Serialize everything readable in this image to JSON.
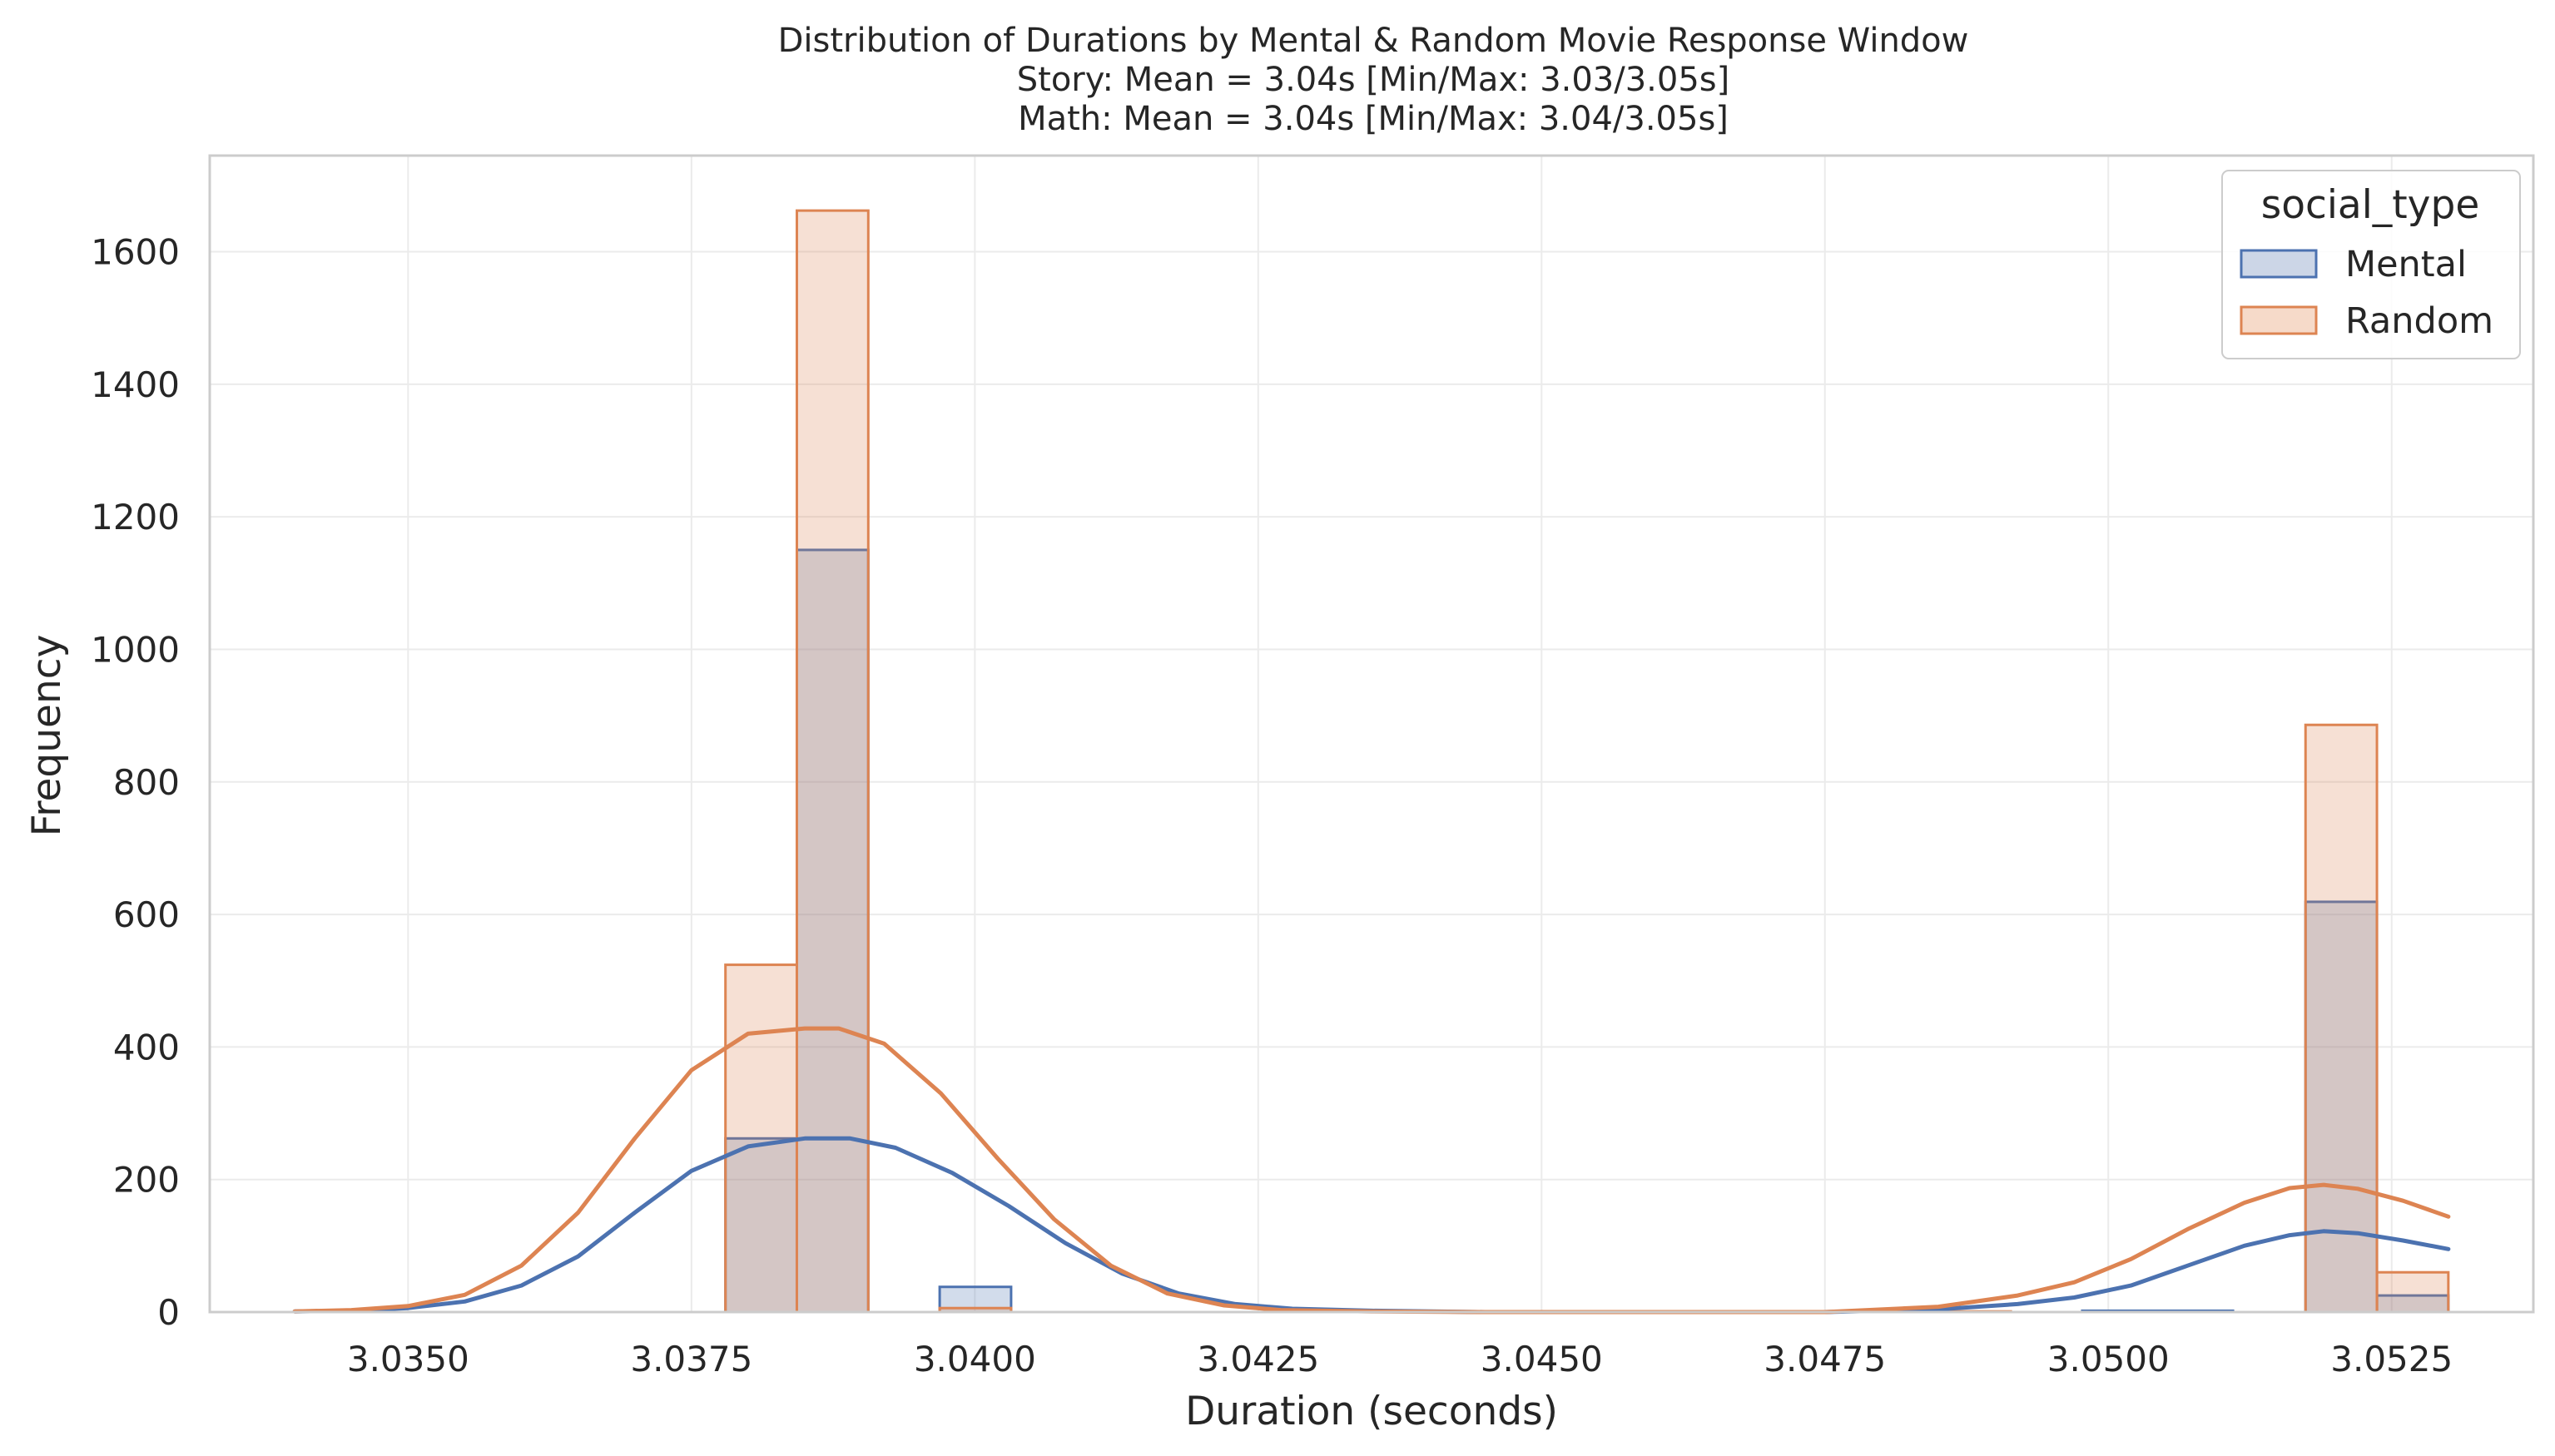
{
  "chart_data": {
    "type": "histogram",
    "title_lines": [
      "Distribution of Durations by Mental & Random Movie Response Window",
      "Story: Mean = 3.04s [Min/Max: 3.03/3.05s]",
      "Math: Mean = 3.04s [Min/Max: 3.04/3.05s]"
    ],
    "xlabel": "Duration (seconds)",
    "ylabel": "Frequency",
    "xlim": [
      3.03325,
      3.05375
    ],
    "ylim": [
      0,
      1745
    ],
    "xticks": [
      3.035,
      3.0375,
      3.04,
      3.0425,
      3.045,
      3.0475,
      3.05,
      3.0525
    ],
    "xtick_labels": [
      "3.0350",
      "3.0375",
      "3.0400",
      "3.0425",
      "3.0450",
      "3.0475",
      "3.0500",
      "3.0525"
    ],
    "yticks": [
      0,
      200,
      400,
      600,
      800,
      1000,
      1200,
      1400,
      1600
    ],
    "ytick_labels": [
      "0",
      "200",
      "400",
      "600",
      "800",
      "1000",
      "1200",
      "1400",
      "1600"
    ],
    "grid": true,
    "legend": {
      "title": "social_type",
      "position": "top-right"
    },
    "bin_edges": [
      3.0378,
      3.03843,
      3.03906,
      3.03969,
      3.04032,
      3.05174,
      3.05237,
      3.053
    ],
    "series": [
      {
        "name": "Mental",
        "color": "#4c72b0",
        "fill": "#ccd6e7",
        "bins": [
          {
            "x0": 3.0378,
            "x1": 3.03843,
            "count": 262
          },
          {
            "x0": 3.03843,
            "x1": 3.03906,
            "count": 1150
          },
          {
            "x0": 3.03969,
            "x1": 3.04032,
            "count": 38
          },
          {
            "x0": 3.04977,
            "x1": 3.0511,
            "count": 2
          },
          {
            "x0": 3.05174,
            "x1": 3.05237,
            "count": 619
          },
          {
            "x0": 3.05237,
            "x1": 3.053,
            "count": 25
          }
        ],
        "kde": {
          "x": [
            3.034,
            3.0345,
            3.035,
            3.0355,
            3.036,
            3.0365,
            3.037,
            3.0375,
            3.038,
            3.0385,
            3.0389,
            3.0393,
            3.0398,
            3.0403,
            3.0408,
            3.0413,
            3.0418,
            3.0423,
            3.0428,
            3.0435,
            3.0445,
            3.0455,
            3.0465,
            3.0475,
            3.0485,
            3.0492,
            3.0497,
            3.0502,
            3.0507,
            3.0512,
            3.0516,
            3.0519,
            3.0522,
            3.0526,
            3.053
          ],
          "y": [
            1,
            2,
            6,
            16,
            40,
            84,
            150,
            213,
            250,
            262,
            262,
            248,
            210,
            160,
            104,
            58,
            28,
            12,
            5,
            2,
            0,
            0,
            0,
            0,
            4,
            12,
            22,
            40,
            70,
            100,
            116,
            122,
            119,
            108,
            95
          ]
        }
      },
      {
        "name": "Random",
        "color": "#dd8452",
        "fill": "#f6dac9",
        "bins": [
          {
            "x0": 3.0378,
            "x1": 3.03843,
            "count": 524
          },
          {
            "x0": 3.03843,
            "x1": 3.03906,
            "count": 1662
          },
          {
            "x0": 3.03969,
            "x1": 3.04032,
            "count": 6
          },
          {
            "x0": 3.04536,
            "x1": 3.04914,
            "count": 1
          },
          {
            "x0": 3.05174,
            "x1": 3.05237,
            "count": 886
          },
          {
            "x0": 3.05237,
            "x1": 3.053,
            "count": 60
          }
        ],
        "kde": {
          "x": [
            3.034,
            3.0345,
            3.035,
            3.0355,
            3.036,
            3.0365,
            3.037,
            3.0375,
            3.038,
            3.0385,
            3.0388,
            3.0392,
            3.0397,
            3.0402,
            3.0407,
            3.0412,
            3.0417,
            3.0422,
            3.0427,
            3.0435,
            3.0445,
            3.0455,
            3.0465,
            3.0475,
            3.0485,
            3.0492,
            3.0497,
            3.0502,
            3.0507,
            3.0512,
            3.0516,
            3.0519,
            3.0522,
            3.0526,
            3.053
          ],
          "y": [
            1,
            3,
            9,
            26,
            70,
            150,
            262,
            365,
            420,
            428,
            428,
            405,
            330,
            232,
            140,
            70,
            28,
            10,
            3,
            1,
            0,
            0,
            0,
            0,
            8,
            25,
            45,
            80,
            125,
            165,
            187,
            192,
            186,
            168,
            144
          ]
        }
      }
    ]
  }
}
